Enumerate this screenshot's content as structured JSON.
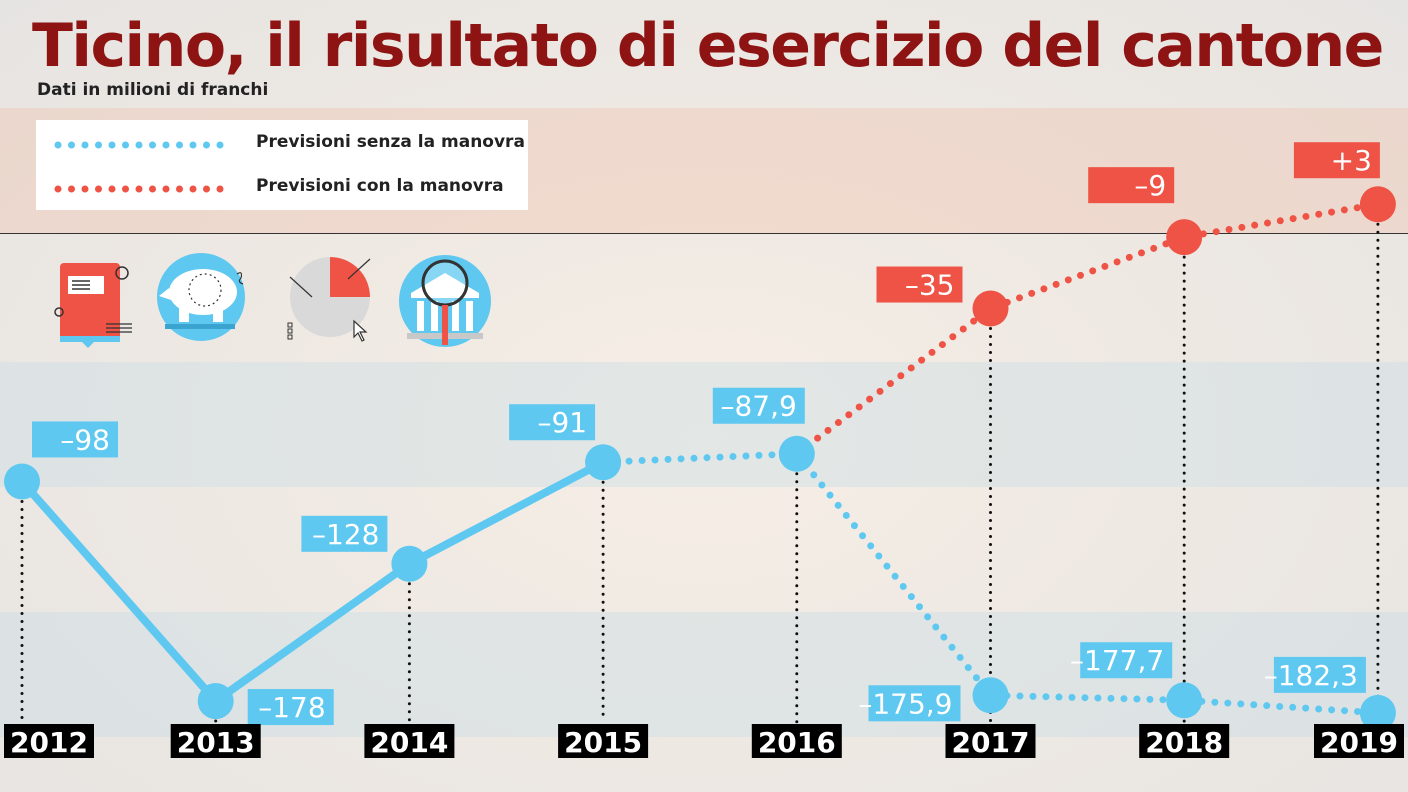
{
  "header": {
    "title": "Ticino, il risultato di esercizio del cantone",
    "subtitle": "Dati in milioni di franchi"
  },
  "colors": {
    "title": "#8e1414",
    "blue": "#5ec8f0",
    "red": "#ee5346",
    "year_box": "#000000"
  },
  "icons": [
    "book-icon",
    "piggy-bank-icon",
    "pie-chart-icon",
    "bank-magnifier-icon"
  ],
  "chart_data": {
    "type": "line",
    "x": [
      "2012",
      "2013",
      "2014",
      "2015",
      "2016",
      "2017",
      "2018",
      "2019"
    ],
    "series": [
      {
        "name": "",
        "style": "solid",
        "color": "#5ec8f0",
        "points": [
          {
            "x": "2012",
            "y": -98,
            "label": "–98"
          },
          {
            "x": "2013",
            "y": -178,
            "label": "–178"
          },
          {
            "x": "2014",
            "y": -128,
            "label": "–128"
          },
          {
            "x": "2015",
            "y": -91,
            "label": "–91"
          }
        ]
      },
      {
        "name": "Previsioni senza la manovra",
        "style": "dotted",
        "color": "#5ec8f0",
        "points": [
          {
            "x": "2015",
            "y": -91,
            "label": ""
          },
          {
            "x": "2016",
            "y": -87.9,
            "label": "–87,9"
          },
          {
            "x": "2017",
            "y": -175.9,
            "label": "–175,9"
          },
          {
            "x": "2018",
            "y": -177.7,
            "label": "–177,7"
          },
          {
            "x": "2019",
            "y": -182.3,
            "label": "–182,3"
          }
        ]
      },
      {
        "name": "Previsioni con la manovra",
        "style": "dotted",
        "color": "#ee5346",
        "points": [
          {
            "x": "2016",
            "y": -87.9,
            "label": ""
          },
          {
            "x": "2017",
            "y": -35,
            "label": "–35"
          },
          {
            "x": "2018",
            "y": -9,
            "label": "–9"
          },
          {
            "x": "2019",
            "y": 3,
            "label": "+3"
          }
        ]
      }
    ],
    "ylim": [
      -190,
      10
    ],
    "legend_position": "top-left"
  }
}
